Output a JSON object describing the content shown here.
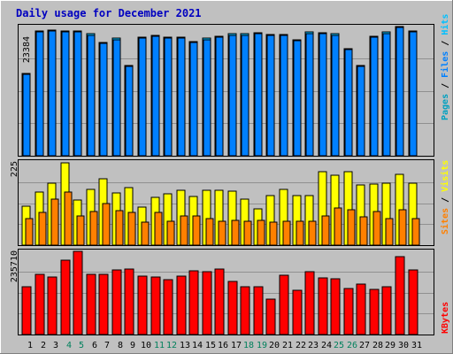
{
  "title": "Daily usage for December 2021",
  "colors": {
    "background": "#c0c0c0",
    "title": "#0000c0",
    "hits": "#00c0ff",
    "files": "#0080ff",
    "pages": "#00a0c0",
    "visits": "#ffff00",
    "sites": "#ff8000",
    "kbytes": "#ff0000",
    "weekday_label": "#000000",
    "weekend_label": "#00805c"
  },
  "chart_data": [
    {
      "type": "bar",
      "title": "Daily usage for December 2021",
      "scale_label": "23384",
      "ylim": [
        0,
        23384
      ],
      "y_axis_labels": [
        "Pages",
        "Files",
        "Hits"
      ],
      "categories": [
        "1",
        "2",
        "3",
        "4",
        "5",
        "6",
        "7",
        "8",
        "9",
        "10",
        "11",
        "12",
        "13",
        "14",
        "15",
        "16",
        "17",
        "18",
        "19",
        "20",
        "21",
        "22",
        "23",
        "24",
        "25",
        "26",
        "27",
        "28",
        "29",
        "30",
        "31"
      ],
      "weekend_days": [
        4,
        5,
        11,
        12,
        18,
        19,
        25,
        26
      ],
      "series": [
        {
          "name": "Hits",
          "values": [
            14800,
            22400,
            22600,
            22500,
            22500,
            21900,
            20400,
            21100,
            16200,
            21300,
            21700,
            21300,
            21300,
            20600,
            21100,
            21500,
            21900,
            21900,
            22100,
            21800,
            21800,
            20900,
            22200,
            22100,
            21900,
            19300,
            16300,
            21500,
            22200,
            23200,
            22400
          ]
        },
        {
          "name": "Files",
          "values": [
            14600,
            22200,
            22400,
            22300,
            22300,
            21700,
            20200,
            20900,
            16000,
            21100,
            21500,
            21100,
            21100,
            20400,
            20900,
            21300,
            21700,
            21700,
            21900,
            21600,
            21600,
            20700,
            22000,
            21900,
            21700,
            19100,
            16100,
            21300,
            22000,
            23000,
            22200
          ]
        }
      ]
    },
    {
      "type": "bar",
      "scale_label": "225",
      "ylim": [
        0,
        225
      ],
      "y_axis_labels": [
        "Sites",
        "Visits"
      ],
      "series": [
        {
          "name": "Visits",
          "values": [
            104,
            142,
            166,
            221,
            121,
            149,
            178,
            139,
            154,
            102,
            129,
            137,
            146,
            131,
            146,
            146,
            144,
            123,
            97,
            133,
            149,
            132,
            132,
            196,
            188,
            197,
            160,
            163,
            166,
            190,
            166
          ]
        },
        {
          "name": "Sites",
          "values": [
            70,
            88,
            123,
            141,
            77,
            91,
            111,
            93,
            88,
            62,
            88,
            64,
            77,
            79,
            71,
            65,
            67,
            64,
            67,
            62,
            64,
            64,
            65,
            78,
            99,
            95,
            75,
            90,
            72,
            94,
            72
          ]
        }
      ]
    },
    {
      "type": "bar",
      "scale_label": "235710",
      "ylim": [
        0,
        235710
      ],
      "y_axis_labels": [
        "KBytes"
      ],
      "series": [
        {
          "name": "KBytes",
          "values": [
            134000,
            169000,
            161000,
            208000,
            234000,
            169000,
            169000,
            181000,
            183000,
            163000,
            161000,
            154000,
            163000,
            178000,
            175000,
            184000,
            148000,
            135000,
            135000,
            100000,
            165000,
            125000,
            176000,
            160000,
            156000,
            129000,
            141000,
            126000,
            135000,
            219000,
            181000
          ]
        }
      ]
    }
  ]
}
